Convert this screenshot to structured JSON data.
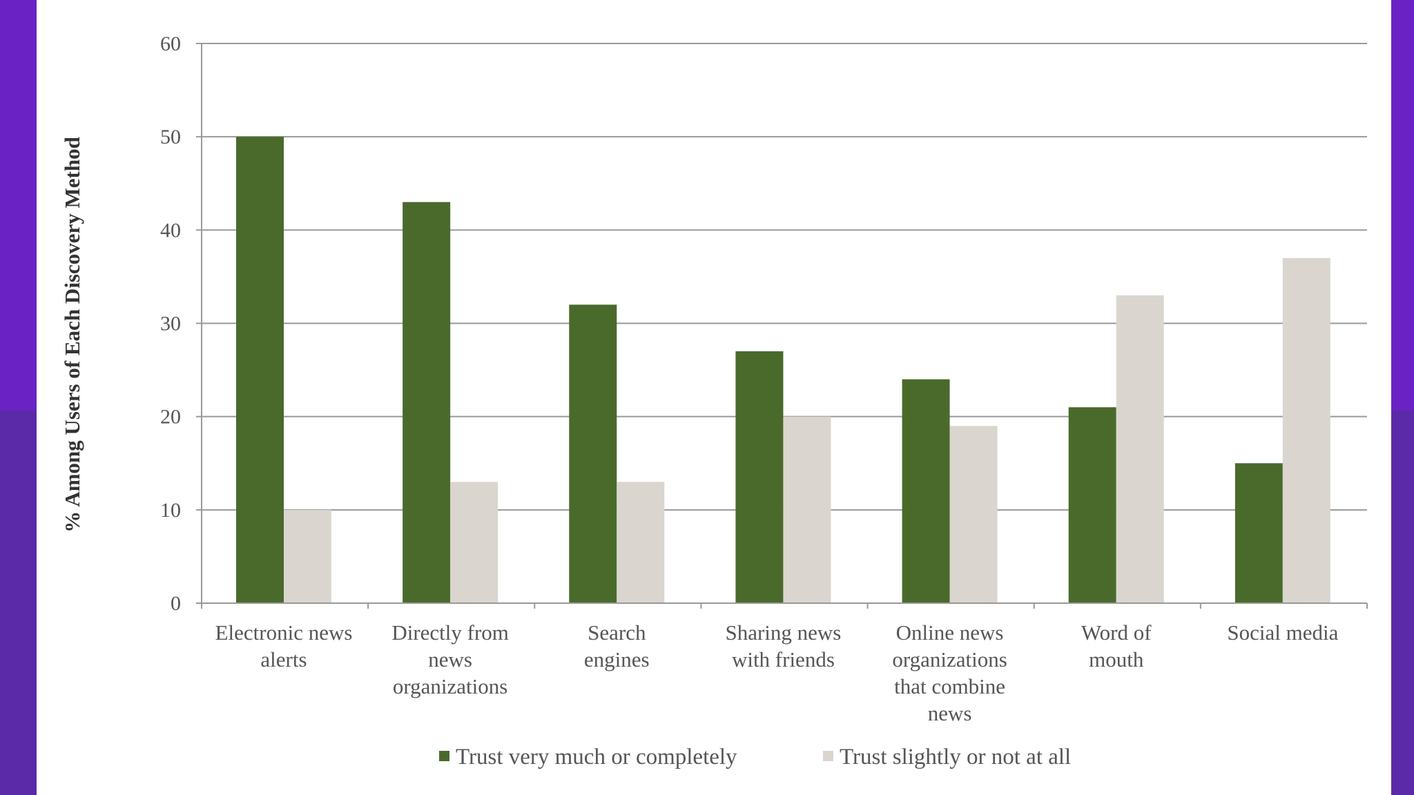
{
  "colors": {
    "background": "#6a22c4",
    "panel": "#ffffff",
    "trust_high": "#4a6a2c",
    "trust_low": "#dad6cf",
    "grid": "#999999"
  },
  "chart_data": {
    "type": "bar",
    "title": "",
    "xlabel": "",
    "ylabel": "% Among Users of Each Discovery Method",
    "ylim": [
      0,
      60
    ],
    "yticks": [
      0,
      10,
      20,
      30,
      40,
      50,
      60
    ],
    "grid": true,
    "legend_position": "bottom",
    "categories": [
      [
        "Electronic news",
        "alerts"
      ],
      [
        "Directly from",
        "news",
        "organizations"
      ],
      [
        "Search",
        "engines"
      ],
      [
        "Sharing news",
        "with friends"
      ],
      [
        "Online news",
        "organizations",
        "that combine",
        "news"
      ],
      [
        "Word of",
        "mouth"
      ],
      [
        "Social media"
      ]
    ],
    "series": [
      {
        "name": "Trust very much or completely",
        "color": "#4a6a2c",
        "values": [
          50,
          43,
          32,
          27,
          24,
          21,
          15
        ]
      },
      {
        "name": "Trust slightly or not at all",
        "color": "#dad6cf",
        "values": [
          10,
          13,
          13,
          20,
          19,
          33,
          37
        ]
      }
    ]
  }
}
